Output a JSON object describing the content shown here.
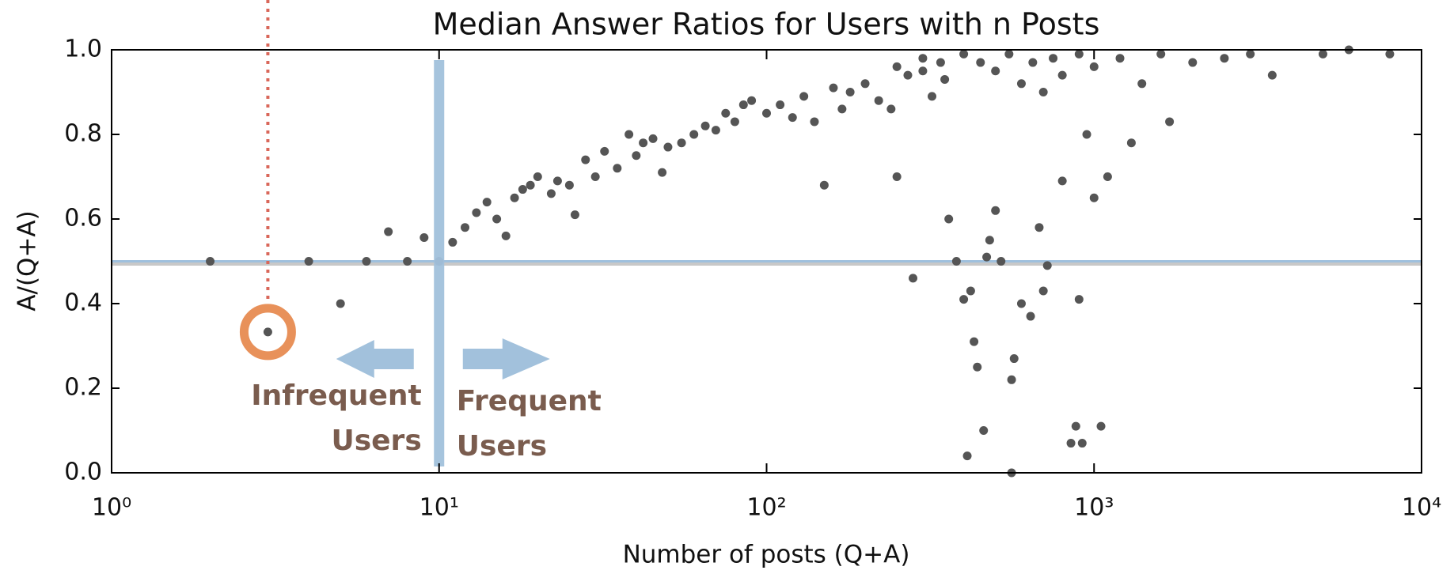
{
  "chart_data": {
    "type": "scatter",
    "title": "Median Answer Ratios for Users with n Posts",
    "x_label": "Number of posts (Q+A)",
    "y_label": "A/(Q+A)",
    "xscale": "log",
    "xlim": [
      1,
      10000
    ],
    "ylim": [
      0,
      1
    ],
    "xticks": [
      {
        "value": 1,
        "label": "10⁰"
      },
      {
        "value": 10,
        "label": "10¹"
      },
      {
        "value": 100,
        "label": "10²"
      },
      {
        "value": 1000,
        "label": "10³"
      },
      {
        "value": 10000,
        "label": "10⁴"
      }
    ],
    "yticks": [
      {
        "value": 0,
        "label": "0.0"
      },
      0.2,
      0.4,
      0.6,
      0.8,
      {
        "value": 1,
        "label": "1.0"
      }
    ],
    "color": "#555555",
    "x": [
      2,
      3,
      4,
      5,
      6,
      7,
      8,
      9,
      10,
      11,
      12,
      13,
      14,
      15,
      16,
      17,
      18,
      19,
      20,
      22,
      23,
      25,
      26,
      28,
      30,
      32,
      35,
      38,
      40,
      42,
      45,
      48,
      50,
      55,
      60,
      65,
      70,
      75,
      80,
      85,
      90,
      100,
      110,
      120,
      130,
      140,
      150,
      160,
      170,
      180,
      200,
      220,
      240,
      250,
      270,
      280,
      300,
      320,
      340,
      360,
      380,
      400,
      410,
      420,
      430,
      440,
      460,
      470,
      480,
      500,
      520,
      560,
      570,
      600,
      640,
      680,
      700,
      720,
      800,
      850,
      880,
      900,
      920,
      950,
      1000,
      1050,
      1100,
      1300,
      1700,
      2000,
      3000,
      3500,
      5000,
      6000,
      8000,
      250,
      300,
      350,
      400,
      450,
      500,
      550,
      600,
      650,
      700,
      750,
      800,
      900,
      1000,
      1200,
      1400,
      1600,
      2500,
      560
    ],
    "values": [
      0.5,
      0.333,
      0.5,
      0.4,
      0.5,
      0.57,
      0.5,
      0.556,
      0.5,
      0.545,
      0.58,
      0.615,
      0.64,
      0.6,
      0.56,
      0.65,
      0.67,
      0.68,
      0.7,
      0.66,
      0.69,
      0.68,
      0.61,
      0.74,
      0.7,
      0.76,
      0.72,
      0.8,
      0.75,
      0.78,
      0.79,
      0.71,
      0.77,
      0.78,
      0.8,
      0.82,
      0.81,
      0.85,
      0.83,
      0.87,
      0.88,
      0.85,
      0.87,
      0.84,
      0.89,
      0.83,
      0.68,
      0.91,
      0.86,
      0.9,
      0.92,
      0.88,
      0.86,
      0.7,
      0.94,
      0.46,
      0.95,
      0.89,
      0.97,
      0.6,
      0.5,
      0.41,
      0.04,
      0.43,
      0.31,
      0.25,
      0.1,
      0.51,
      0.55,
      0.62,
      0.5,
      0.22,
      0.27,
      0.4,
      0.37,
      0.58,
      0.43,
      0.49,
      0.69,
      0.07,
      0.11,
      0.41,
      0.07,
      0.8,
      0.65,
      0.11,
      0.7,
      0.78,
      0.83,
      0.97,
      0.99,
      0.94,
      0.99,
      1.0,
      0.99,
      0.96,
      0.98,
      0.93,
      0.99,
      0.97,
      0.95,
      0.99,
      0.92,
      0.97,
      0.9,
      0.98,
      0.94,
      0.99,
      0.96,
      0.98,
      0.92,
      0.99,
      0.98,
      0.0
    ],
    "hline": 0.5,
    "split_x": 10,
    "highlight": {
      "x": 3,
      "y": 0.333
    },
    "annotations": [
      [
        "Infrequent",
        "Users"
      ],
      [
        "Frequent",
        "Users"
      ]
    ]
  }
}
